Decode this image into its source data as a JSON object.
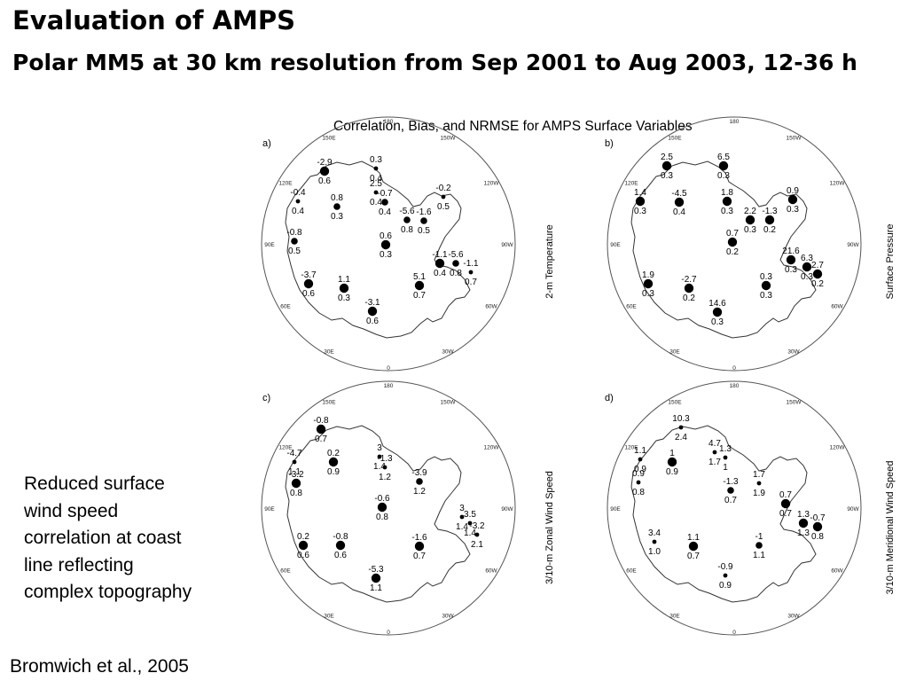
{
  "slide": {
    "title": "Evaluation of AMPS",
    "subtitle": "Polar MM5 at 30 km resolution from Sep 2001 to Aug 2003, 12-36 h",
    "note": "Reduced surface\nwind speed\ncorrelation at coast\nline reflecting\ncomplex topography",
    "citation": "Bromwich et al., 2005"
  },
  "figure": {
    "title": "Correlation, Bias, and NRMSE for AMPS Surface Variables",
    "lon_labels": [
      "180",
      "150W",
      "120W",
      "90W",
      "60W",
      "30W",
      "0",
      "30E",
      "60E",
      "90E",
      "120E",
      "150E"
    ],
    "panels": [
      {
        "id": "a",
        "tag": "a)",
        "variable": "2-m Temperature",
        "stations": [
          {
            "top": "-2.9",
            "bottom": "0.6",
            "size": "large"
          },
          {
            "top": "0.3",
            "bottom": "0.4",
            "size": "small"
          },
          {
            "top": "2.5",
            "bottom": "0.4",
            "size": "small"
          },
          {
            "top": "-0.7",
            "bottom": "0.4",
            "size": "medium"
          },
          {
            "top": "-0.2",
            "bottom": "0.5",
            "size": "small"
          },
          {
            "top": "-0.4",
            "bottom": "0.4",
            "size": "small"
          },
          {
            "top": "0.8",
            "bottom": "0.3",
            "size": "medium"
          },
          {
            "top": "-1.6",
            "bottom": "0.5",
            "size": "medium"
          },
          {
            "top": "-5.6",
            "bottom": "0.8",
            "size": "medium"
          },
          {
            "top": "-0.8",
            "bottom": "0.5",
            "size": "medium"
          },
          {
            "top": "0.6",
            "bottom": "0.3",
            "size": "large"
          },
          {
            "top": "-1.1",
            "bottom": "0.4",
            "size": "large"
          },
          {
            "top": "-5.6",
            "bottom": "0.8",
            "size": "medium"
          },
          {
            "top": "-1.1",
            "bottom": "0.7",
            "size": "small"
          },
          {
            "top": "-3.7",
            "bottom": "0.6",
            "size": "large"
          },
          {
            "top": "1.1",
            "bottom": "0.3",
            "size": "large"
          },
          {
            "top": "5.1",
            "bottom": "0.7",
            "size": "large"
          },
          {
            "top": "-3.1",
            "bottom": "0.6",
            "size": "large"
          }
        ]
      },
      {
        "id": "b",
        "tag": "b)",
        "variable": "Surface Pressure",
        "stations": [
          {
            "top": "2.5",
            "bottom": "0.3",
            "size": "large"
          },
          {
            "top": "6.5",
            "bottom": "0.3",
            "size": "large"
          },
          {
            "top": "1.4",
            "bottom": "0.3",
            "size": "large"
          },
          {
            "top": "-4.5",
            "bottom": "0.4",
            "size": "large"
          },
          {
            "top": "1.8",
            "bottom": "0.3",
            "size": "large"
          },
          {
            "top": "0.9",
            "bottom": "0.3",
            "size": "large"
          },
          {
            "top": "-1.3",
            "bottom": "0.2",
            "size": "large"
          },
          {
            "top": "2.2",
            "bottom": "0.3",
            "size": "large"
          },
          {
            "top": "0.7",
            "bottom": "0.2",
            "size": "large"
          },
          {
            "top": "21.6",
            "bottom": "0.3",
            "size": "large"
          },
          {
            "top": "6.3",
            "bottom": "0.3",
            "size": "large"
          },
          {
            "top": "2.7",
            "bottom": "0.2",
            "size": "large"
          },
          {
            "top": "1.9",
            "bottom": "0.3",
            "size": "large"
          },
          {
            "top": "-2.7",
            "bottom": "0.2",
            "size": "large"
          },
          {
            "top": "0.3",
            "bottom": "0.3",
            "size": "large"
          },
          {
            "top": "14.6",
            "bottom": "0.3",
            "size": "large"
          }
        ]
      },
      {
        "id": "c",
        "tag": "c)",
        "variable": "3/10-m Zonal Wind Speed",
        "stations": [
          {
            "top": "-0.8",
            "bottom": "0.7",
            "size": "large"
          },
          {
            "top": "-4.7",
            "bottom": "1.1",
            "size": "small"
          },
          {
            "top": "0.2",
            "bottom": "0.9",
            "size": "large"
          },
          {
            "top": "3",
            "bottom": "1.4",
            "size": "small"
          },
          {
            "top": "-1.3",
            "bottom": "1.2",
            "size": "small"
          },
          {
            "top": "-3.2",
            "bottom": "0.8",
            "size": "large"
          },
          {
            "top": "-3.9",
            "bottom": "1.2",
            "size": "medium"
          },
          {
            "top": "-0.6",
            "bottom": "0.8",
            "size": "large"
          },
          {
            "top": "3",
            "bottom": "1.4",
            "size": "small"
          },
          {
            "top": "3.5",
            "bottom": "1.4",
            "size": "small"
          },
          {
            "top": "-3.2",
            "bottom": "2.1",
            "size": "small"
          },
          {
            "top": "0.2",
            "bottom": "0.6",
            "size": "large"
          },
          {
            "top": "-0.8",
            "bottom": "0.6",
            "size": "large"
          },
          {
            "top": "-1.6",
            "bottom": "0.7",
            "size": "large"
          },
          {
            "top": "-5.3",
            "bottom": "1.1",
            "size": "large"
          }
        ]
      },
      {
        "id": "d",
        "tag": "d)",
        "variable": "3/10-m Meridional Wind Speed",
        "stations": [
          {
            "top": "10.3",
            "bottom": "2.4",
            "size": "small"
          },
          {
            "top": "4.7",
            "bottom": "1.7",
            "size": "small"
          },
          {
            "top": "1.3",
            "bottom": "1",
            "size": "small"
          },
          {
            "top": "1.1",
            "bottom": "0.9",
            "size": "small"
          },
          {
            "top": "1",
            "bottom": "0.9",
            "size": "large"
          },
          {
            "top": "0.9",
            "bottom": "0.8",
            "size": "small"
          },
          {
            "top": "-1.3",
            "bottom": "0.7",
            "size": "medium"
          },
          {
            "top": "1.7",
            "bottom": "1.9",
            "size": "small"
          },
          {
            "top": "0.7",
            "bottom": "0.7",
            "size": "large"
          },
          {
            "top": "1.3",
            "bottom": "1.3",
            "size": "large"
          },
          {
            "top": "-0.7",
            "bottom": "0.8",
            "size": "large"
          },
          {
            "top": "3.4",
            "bottom": "1.0",
            "size": "small"
          },
          {
            "top": "1.1",
            "bottom": "0.7",
            "size": "large"
          },
          {
            "top": "-1",
            "bottom": "1.1",
            "size": "medium"
          },
          {
            "top": "-0.9",
            "bottom": "0.9",
            "size": "small"
          }
        ]
      }
    ]
  }
}
